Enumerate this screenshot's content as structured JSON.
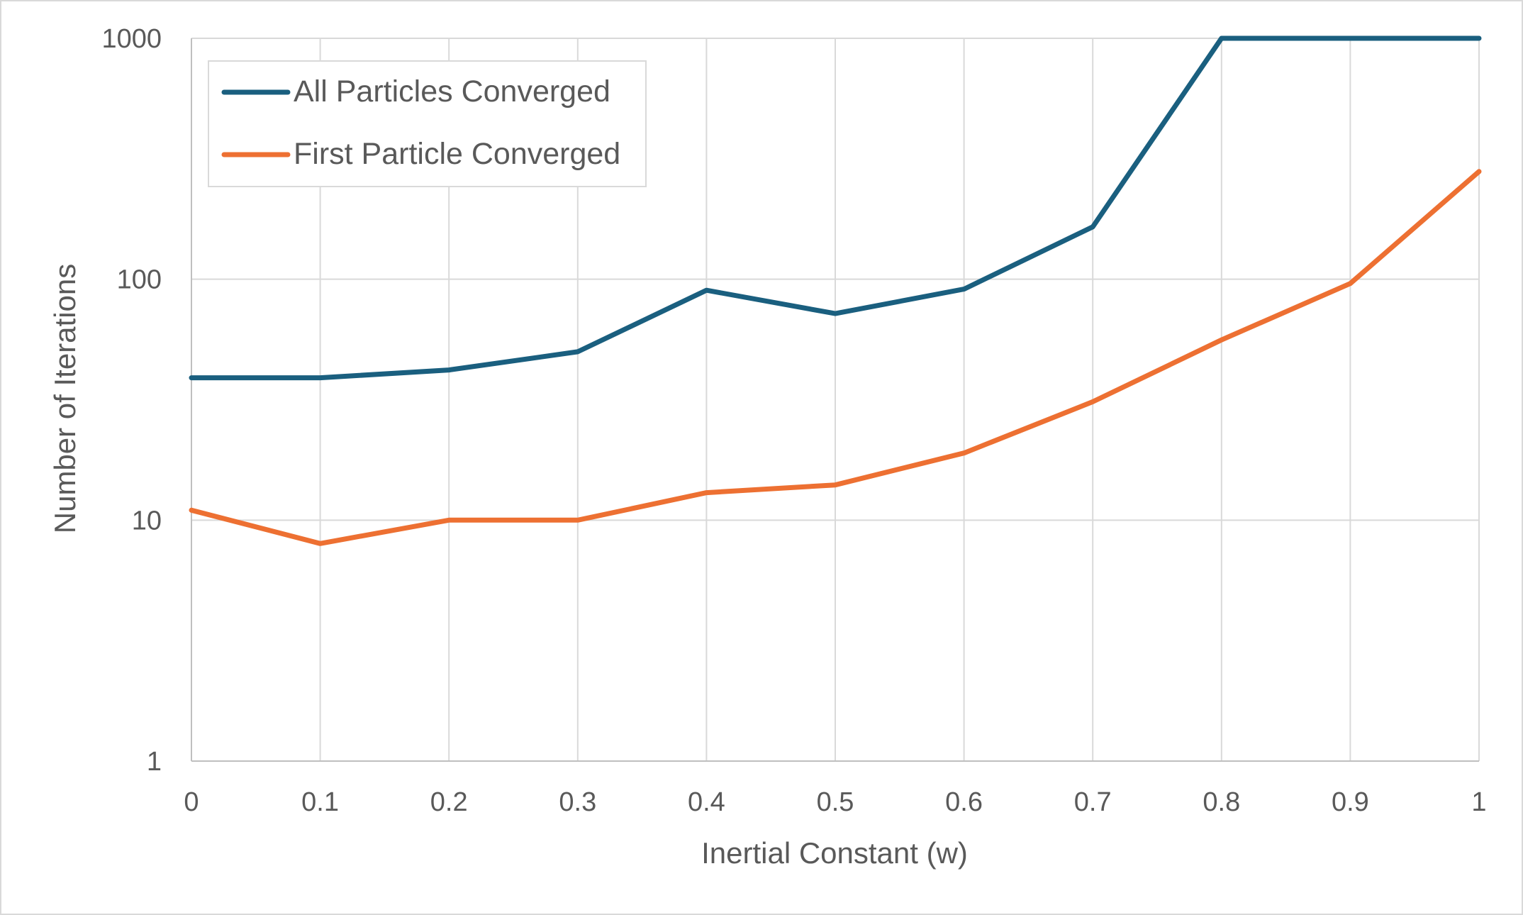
{
  "chart_data": {
    "type": "line",
    "title": "",
    "xlabel": "Inertial Constant (w)",
    "ylabel": "Number of Iterations",
    "x": [
      0,
      0.1,
      0.2,
      0.3,
      0.4,
      0.5,
      0.6,
      0.7,
      0.8,
      0.9,
      1
    ],
    "x_tick_labels": [
      "0",
      "0.1",
      "0.2",
      "0.3",
      "0.4",
      "0.5",
      "0.6",
      "0.7",
      "0.8",
      "0.9",
      "1"
    ],
    "y_tick_labels": [
      "1",
      "10",
      "100",
      "1000"
    ],
    "y_scale": "log",
    "xlim": [
      0,
      1
    ],
    "ylim": [
      1,
      1000
    ],
    "grid": true,
    "legend_position": "top-left",
    "series": [
      {
        "name": "All Particles Converged",
        "color": "#1a5f7f",
        "values": [
          39,
          39,
          42,
          50,
          90,
          72,
          91,
          165,
          1000,
          1000,
          1000
        ]
      },
      {
        "name": "First Particle Converged",
        "color": "#ed7032",
        "values": [
          11,
          8,
          10,
          10,
          13,
          14,
          19,
          31,
          56,
          96,
          280
        ]
      }
    ]
  }
}
